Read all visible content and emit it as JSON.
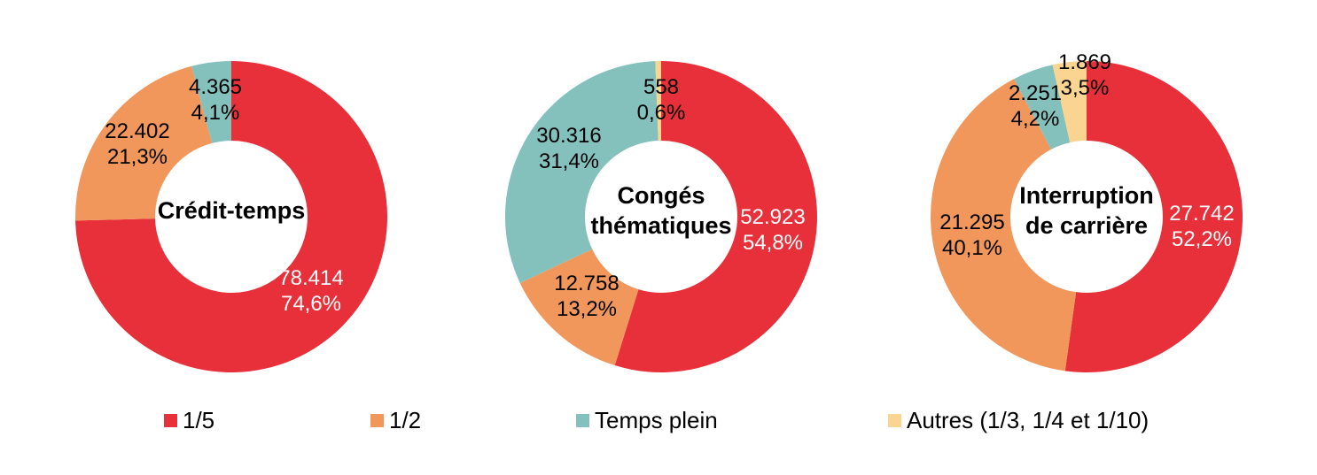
{
  "figure": {
    "background": "#FFFFFF",
    "text_color": "#000000"
  },
  "legend": {
    "position": "bottom",
    "items": [
      {
        "label": "1/5",
        "color": "#E73039"
      },
      {
        "label": "1/2",
        "color": "#F1975B"
      },
      {
        "label": "Temps plein",
        "color": "#84C1BD"
      },
      {
        "label": "Autres (1/3, 1/4 et 1/10)",
        "color": "#FAD591"
      }
    ]
  },
  "chart_data": {
    "type": "pie",
    "subtype": "donut",
    "donut_hole_ratio": 0.49,
    "start_angle": "top",
    "direction": "clockwise",
    "grid": false,
    "legend_position": "bottom",
    "series": [
      "1/5",
      "1/2",
      "Temps plein",
      "Autres (1/3, 1/4 et 1/10)"
    ],
    "charts": [
      {
        "title": "Crédit-temps",
        "title_lines": [
          "Crédit-temps"
        ],
        "slices": [
          {
            "series": "1/5",
            "value": 78414,
            "value_label": "78.414",
            "pct": 74.6,
            "pct_label": "74,6%",
            "color": "#E73039",
            "label_color": "#FFFFFF"
          },
          {
            "series": "1/2",
            "value": 22402,
            "value_label": "22.402",
            "pct": 21.3,
            "pct_label": "21,3%",
            "color": "#F1975B",
            "label_color": "#000000"
          },
          {
            "series": "Temps plein",
            "value": 4365,
            "value_label": "4.365",
            "pct": 4.1,
            "pct_label": "4,1%",
            "color": "#84C1BD",
            "label_color": "#000000"
          }
        ]
      },
      {
        "title": "Congés thématiques",
        "title_lines": [
          "Congés",
          "thématiques"
        ],
        "slices": [
          {
            "series": "1/5",
            "value": 52923,
            "value_label": "52.923",
            "pct": 54.8,
            "pct_label": "54,8%",
            "color": "#E73039",
            "label_color": "#FFFFFF"
          },
          {
            "series": "1/2",
            "value": 12758,
            "value_label": "12.758",
            "pct": 13.2,
            "pct_label": "13,2%",
            "color": "#F1975B",
            "label_color": "#000000"
          },
          {
            "series": "Temps plein",
            "value": 30316,
            "value_label": "30.316",
            "pct": 31.4,
            "pct_label": "31,4%",
            "color": "#84C1BD",
            "label_color": "#000000"
          },
          {
            "series": "Autres (1/3, 1/4 et 1/10)",
            "value": 558,
            "value_label": "558",
            "pct": 0.6,
            "pct_label": "0,6%",
            "color": "#FAD591",
            "label_color": "#000000"
          }
        ]
      },
      {
        "title": "Interruption de carrière",
        "title_lines": [
          "Interruption",
          "de carrière"
        ],
        "slices": [
          {
            "series": "1/5",
            "value": 27742,
            "value_label": "27.742",
            "pct": 52.2,
            "pct_label": "52,2%",
            "color": "#E73039",
            "label_color": "#FFFFFF"
          },
          {
            "series": "1/2",
            "value": 21295,
            "value_label": "21.295",
            "pct": 40.1,
            "pct_label": "40,1%",
            "color": "#F1975B",
            "label_color": "#000000"
          },
          {
            "series": "Temps plein",
            "value": 2251,
            "value_label": "2.251",
            "pct": 4.2,
            "pct_label": "4,2%",
            "color": "#84C1BD",
            "label_color": "#000000"
          },
          {
            "series": "Autres (1/3, 1/4 et 1/10)",
            "value": 1869,
            "value_label": "1.869",
            "pct": 3.5,
            "pct_label": "3,5%",
            "color": "#FAD591",
            "label_color": "#000000"
          }
        ]
      }
    ]
  }
}
